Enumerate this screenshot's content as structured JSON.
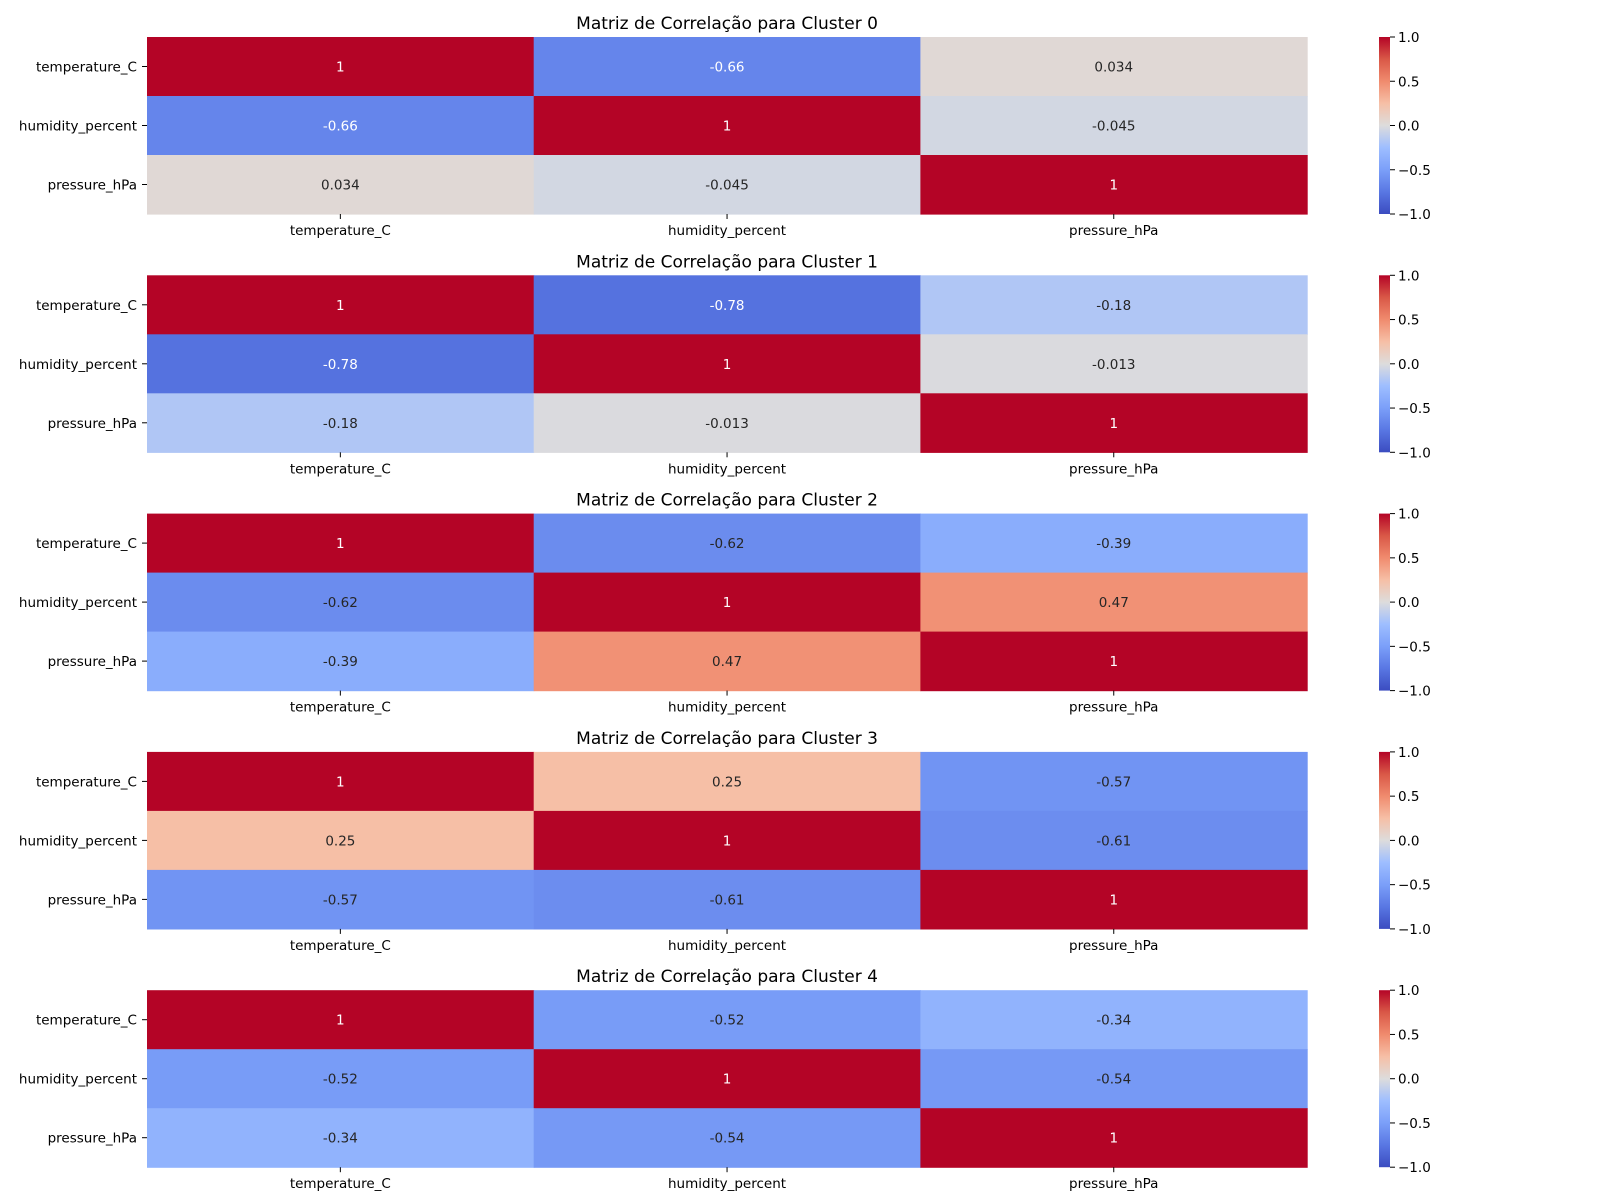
{
  "chart_data": [
    {
      "type": "heatmap",
      "title": "Matriz de Correlação para Cluster 0",
      "rows": [
        "temperature_C",
        "humidity_percent",
        "pressure_hPa"
      ],
      "columns": [
        "temperature_C",
        "humidity_percent",
        "pressure_hPa"
      ],
      "values": [
        [
          1,
          -0.66,
          0.034
        ],
        [
          -0.66,
          1,
          -0.045
        ],
        [
          0.034,
          -0.045,
          1
        ]
      ],
      "labels": [
        [
          "1",
          "-0.66",
          "0.034"
        ],
        [
          "-0.66",
          "1",
          "-0.045"
        ],
        [
          "0.034",
          "-0.045",
          "1"
        ]
      ],
      "colormap": "coolwarm",
      "vmin": -1.0,
      "vmax": 1.0,
      "colorbar_ticks": [
        "1.0",
        "0.5",
        "0.0",
        "−0.5",
        "−1.0"
      ]
    },
    {
      "type": "heatmap",
      "title": "Matriz de Correlação para Cluster 1",
      "rows": [
        "temperature_C",
        "humidity_percent",
        "pressure_hPa"
      ],
      "columns": [
        "temperature_C",
        "humidity_percent",
        "pressure_hPa"
      ],
      "values": [
        [
          1,
          -0.78,
          -0.18
        ],
        [
          -0.78,
          1,
          -0.013
        ],
        [
          -0.18,
          -0.013,
          1
        ]
      ],
      "labels": [
        [
          "1",
          "-0.78",
          "-0.18"
        ],
        [
          "-0.78",
          "1",
          "-0.013"
        ],
        [
          "-0.18",
          "-0.013",
          "1"
        ]
      ],
      "colormap": "coolwarm",
      "vmin": -1.0,
      "vmax": 1.0,
      "colorbar_ticks": [
        "1.0",
        "0.5",
        "0.0",
        "−0.5",
        "−1.0"
      ]
    },
    {
      "type": "heatmap",
      "title": "Matriz de Correlação para Cluster 2",
      "rows": [
        "temperature_C",
        "humidity_percent",
        "pressure_hPa"
      ],
      "columns": [
        "temperature_C",
        "humidity_percent",
        "pressure_hPa"
      ],
      "values": [
        [
          1,
          -0.62,
          -0.39
        ],
        [
          -0.62,
          1,
          0.47
        ],
        [
          -0.39,
          0.47,
          1
        ]
      ],
      "labels": [
        [
          "1",
          "-0.62",
          "-0.39"
        ],
        [
          "-0.62",
          "1",
          "0.47"
        ],
        [
          "-0.39",
          "0.47",
          "1"
        ]
      ],
      "colormap": "coolwarm",
      "vmin": -1.0,
      "vmax": 1.0,
      "colorbar_ticks": [
        "1.0",
        "0.5",
        "0.0",
        "−0.5",
        "−1.0"
      ]
    },
    {
      "type": "heatmap",
      "title": "Matriz de Correlação para Cluster 3",
      "rows": [
        "temperature_C",
        "humidity_percent",
        "pressure_hPa"
      ],
      "columns": [
        "temperature_C",
        "humidity_percent",
        "pressure_hPa"
      ],
      "values": [
        [
          1,
          0.25,
          -0.57
        ],
        [
          0.25,
          1,
          -0.61
        ],
        [
          -0.57,
          -0.61,
          1
        ]
      ],
      "labels": [
        [
          "1",
          "0.25",
          "-0.57"
        ],
        [
          "0.25",
          "1",
          "-0.61"
        ],
        [
          "-0.57",
          "-0.61",
          "1"
        ]
      ],
      "colormap": "coolwarm",
      "vmin": -1.0,
      "vmax": 1.0,
      "colorbar_ticks": [
        "1.0",
        "0.5",
        "0.0",
        "−0.5",
        "−1.0"
      ]
    },
    {
      "type": "heatmap",
      "title": "Matriz de Correlação para Cluster 4",
      "rows": [
        "temperature_C",
        "humidity_percent",
        "pressure_hPa"
      ],
      "columns": [
        "temperature_C",
        "humidity_percent",
        "pressure_hPa"
      ],
      "values": [
        [
          1,
          -0.52,
          -0.34
        ],
        [
          -0.52,
          1,
          -0.54
        ],
        [
          -0.34,
          -0.54,
          1
        ]
      ],
      "labels": [
        [
          "1",
          "-0.52",
          "-0.34"
        ],
        [
          "-0.52",
          "1",
          "-0.54"
        ],
        [
          "-0.34",
          "-0.54",
          "1"
        ]
      ],
      "colormap": "coolwarm",
      "vmin": -1.0,
      "vmax": 1.0,
      "colorbar_ticks": [
        "1.0",
        "0.5",
        "0.0",
        "−0.5",
        "−1.0"
      ]
    }
  ]
}
